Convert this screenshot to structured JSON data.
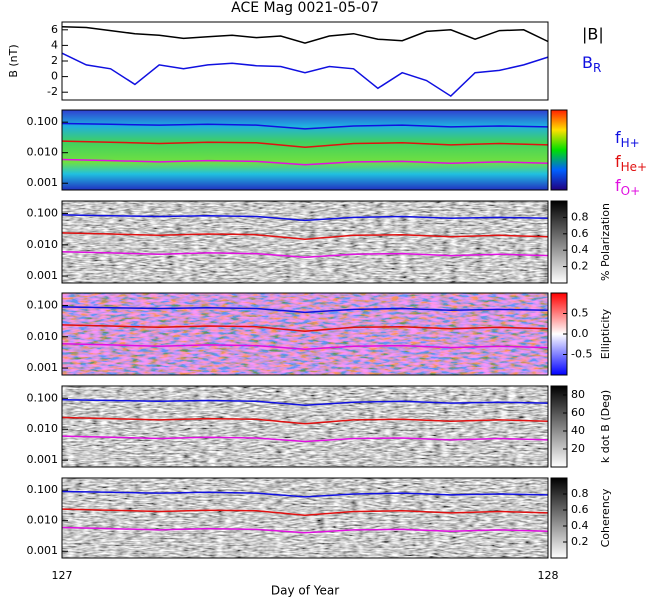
{
  "chart_data": [
    {
      "type": "line",
      "title": "ACE Mag 0021-05-07",
      "ylabel": "B (nT)",
      "xlim": [
        127,
        128
      ],
      "ylim": [
        -3,
        7
      ],
      "yticks": [
        -2,
        0,
        2,
        4,
        6
      ],
      "x": [
        127,
        127.05,
        127.1,
        127.15,
        127.2,
        127.25,
        127.3,
        127.35,
        127.4,
        127.45,
        127.5,
        127.55,
        127.6,
        127.65,
        127.7,
        127.75,
        127.8,
        127.85,
        127.9,
        127.95,
        128
      ],
      "series": [
        {
          "name": "|B|",
          "color": "#000000",
          "values": [
            6.4,
            6.3,
            5.9,
            5.5,
            5.3,
            4.9,
            5.1,
            5.3,
            5.0,
            5.2,
            4.3,
            5.2,
            5.5,
            4.8,
            4.6,
            5.8,
            6.0,
            4.8,
            5.9,
            6.0,
            4.5
          ]
        },
        {
          "name": "BR",
          "color": "#1010e0",
          "values": [
            3.0,
            1.5,
            1.0,
            -1.0,
            1.5,
            1.0,
            1.5,
            1.7,
            1.4,
            1.3,
            0.5,
            1.3,
            1.0,
            -1.5,
            0.5,
            -0.5,
            -2.5,
            0.5,
            0.8,
            1.5,
            2.5
          ]
        }
      ]
    },
    {
      "type": "spectrogram",
      "log": true,
      "xlim": [
        127,
        128
      ],
      "ylim": [
        0.0006,
        0.25
      ],
      "yticks": [
        {
          "value": 0.001,
          "label": "0.001"
        },
        {
          "value": 0.01,
          "label": "0.010"
        },
        {
          "value": 0.1,
          "label": "0.100"
        }
      ],
      "x": [
        127,
        127.1,
        127.2,
        127.3,
        127.4,
        127.5,
        127.6,
        127.7,
        127.8,
        127.9,
        128
      ],
      "series": [
        {
          "name": "fH+",
          "color": "#1010e0",
          "values": [
            0.09,
            0.085,
            0.08,
            0.085,
            0.08,
            0.06,
            0.075,
            0.08,
            0.07,
            0.075,
            0.07
          ]
        },
        {
          "name": "fHe+",
          "color": "#e01010",
          "values": [
            0.024,
            0.022,
            0.02,
            0.022,
            0.021,
            0.015,
            0.02,
            0.021,
            0.018,
            0.02,
            0.018
          ]
        },
        {
          "name": "fO+",
          "color": "#e010e0",
          "values": [
            0.006,
            0.0055,
            0.005,
            0.0055,
            0.0052,
            0.004,
            0.005,
            0.0052,
            0.0045,
            0.005,
            0.0045
          ]
        }
      ]
    },
    {
      "type": "spectrogram",
      "log": true,
      "xlim": [
        127,
        128
      ],
      "ylim": [
        0.0006,
        0.25
      ],
      "yticks": [
        {
          "value": 0.001,
          "label": "0.001"
        },
        {
          "value": 0.01,
          "label": "0.010"
        },
        {
          "value": 0.1,
          "label": "0.100"
        }
      ],
      "clabel": "% Polarization",
      "clim": [
        0,
        1
      ],
      "cticks": [
        0.2,
        0.4,
        0.6,
        0.8
      ],
      "x": [
        127,
        127.1,
        127.2,
        127.3,
        127.4,
        127.5,
        127.6,
        127.7,
        127.8,
        127.9,
        128
      ],
      "series": [
        {
          "color": "#1010e0",
          "values": [
            0.09,
            0.085,
            0.08,
            0.085,
            0.08,
            0.06,
            0.075,
            0.08,
            0.07,
            0.075,
            0.07
          ]
        },
        {
          "color": "#e01010",
          "values": [
            0.024,
            0.022,
            0.02,
            0.022,
            0.021,
            0.015,
            0.02,
            0.021,
            0.018,
            0.02,
            0.018
          ]
        },
        {
          "color": "#e010e0",
          "values": [
            0.006,
            0.0055,
            0.005,
            0.0055,
            0.0052,
            0.004,
            0.005,
            0.0052,
            0.0045,
            0.005,
            0.0045
          ]
        }
      ]
    },
    {
      "type": "spectrogram",
      "log": true,
      "xlim": [
        127,
        128
      ],
      "ylim": [
        0.0006,
        0.25
      ],
      "yticks": [
        {
          "value": 0.001,
          "label": "0.001"
        },
        {
          "value": 0.01,
          "label": "0.010"
        },
        {
          "value": 0.1,
          "label": "0.100"
        }
      ],
      "clabel": "Ellipticity",
      "clim": [
        -1,
        1
      ],
      "cticks": [
        -0.5,
        {
          "value": 0,
          "label": "0.0"
        },
        0.5
      ],
      "x": [
        127,
        127.1,
        127.2,
        127.3,
        127.4,
        127.5,
        127.6,
        127.7,
        127.8,
        127.9,
        128
      ],
      "series": [
        {
          "color": "#1010e0",
          "values": [
            0.09,
            0.085,
            0.08,
            0.085,
            0.08,
            0.06,
            0.075,
            0.08,
            0.07,
            0.075,
            0.07
          ]
        },
        {
          "color": "#e01010",
          "values": [
            0.024,
            0.022,
            0.02,
            0.022,
            0.021,
            0.015,
            0.02,
            0.021,
            0.018,
            0.02,
            0.018
          ]
        },
        {
          "color": "#e010e0",
          "values": [
            0.006,
            0.0055,
            0.005,
            0.0055,
            0.0052,
            0.004,
            0.005,
            0.0052,
            0.0045,
            0.005,
            0.0045
          ]
        }
      ]
    },
    {
      "type": "spectrogram",
      "log": true,
      "xlim": [
        127,
        128
      ],
      "ylim": [
        0.0006,
        0.25
      ],
      "yticks": [
        {
          "value": 0.001,
          "label": "0.001"
        },
        {
          "value": 0.01,
          "label": "0.010"
        },
        {
          "value": 0.1,
          "label": "0.100"
        }
      ],
      "clabel": "k dot B (Deg)",
      "clim": [
        0,
        90
      ],
      "cticks": [
        20,
        40,
        60,
        80
      ],
      "x": [
        127,
        127.1,
        127.2,
        127.3,
        127.4,
        127.5,
        127.6,
        127.7,
        127.8,
        127.9,
        128
      ],
      "series": [
        {
          "color": "#1010e0",
          "values": [
            0.09,
            0.085,
            0.08,
            0.085,
            0.08,
            0.06,
            0.075,
            0.08,
            0.07,
            0.075,
            0.07
          ]
        },
        {
          "color": "#e01010",
          "values": [
            0.024,
            0.022,
            0.02,
            0.022,
            0.021,
            0.015,
            0.02,
            0.021,
            0.018,
            0.02,
            0.018
          ]
        },
        {
          "color": "#e010e0",
          "values": [
            0.006,
            0.0055,
            0.005,
            0.0055,
            0.0052,
            0.004,
            0.005,
            0.0052,
            0.0045,
            0.005,
            0.0045
          ]
        }
      ]
    },
    {
      "type": "spectrogram",
      "log": true,
      "xlim": [
        127,
        128
      ],
      "ylim": [
        0.0006,
        0.25
      ],
      "yticks": [
        {
          "value": 0.001,
          "label": "0.001"
        },
        {
          "value": 0.01,
          "label": "0.010"
        },
        {
          "value": 0.1,
          "label": "0.100"
        }
      ],
      "clabel": "Coherency",
      "clim": [
        0,
        1
      ],
      "cticks": [
        0.2,
        0.4,
        0.6,
        0.8
      ],
      "xlabel": "Day of Year",
      "xticks": [
        127,
        128
      ],
      "x": [
        127,
        127.1,
        127.2,
        127.3,
        127.4,
        127.5,
        127.6,
        127.7,
        127.8,
        127.9,
        128
      ],
      "series": [
        {
          "color": "#1010e0",
          "values": [
            0.09,
            0.085,
            0.08,
            0.085,
            0.08,
            0.06,
            0.075,
            0.08,
            0.07,
            0.075,
            0.07
          ]
        },
        {
          "color": "#e01010",
          "values": [
            0.024,
            0.022,
            0.02,
            0.022,
            0.021,
            0.015,
            0.02,
            0.021,
            0.018,
            0.02,
            0.018
          ]
        },
        {
          "color": "#e010e0",
          "values": [
            0.006,
            0.0055,
            0.005,
            0.0055,
            0.0052,
            0.004,
            0.005,
            0.0052,
            0.0045,
            0.005,
            0.0045
          ]
        }
      ]
    }
  ]
}
